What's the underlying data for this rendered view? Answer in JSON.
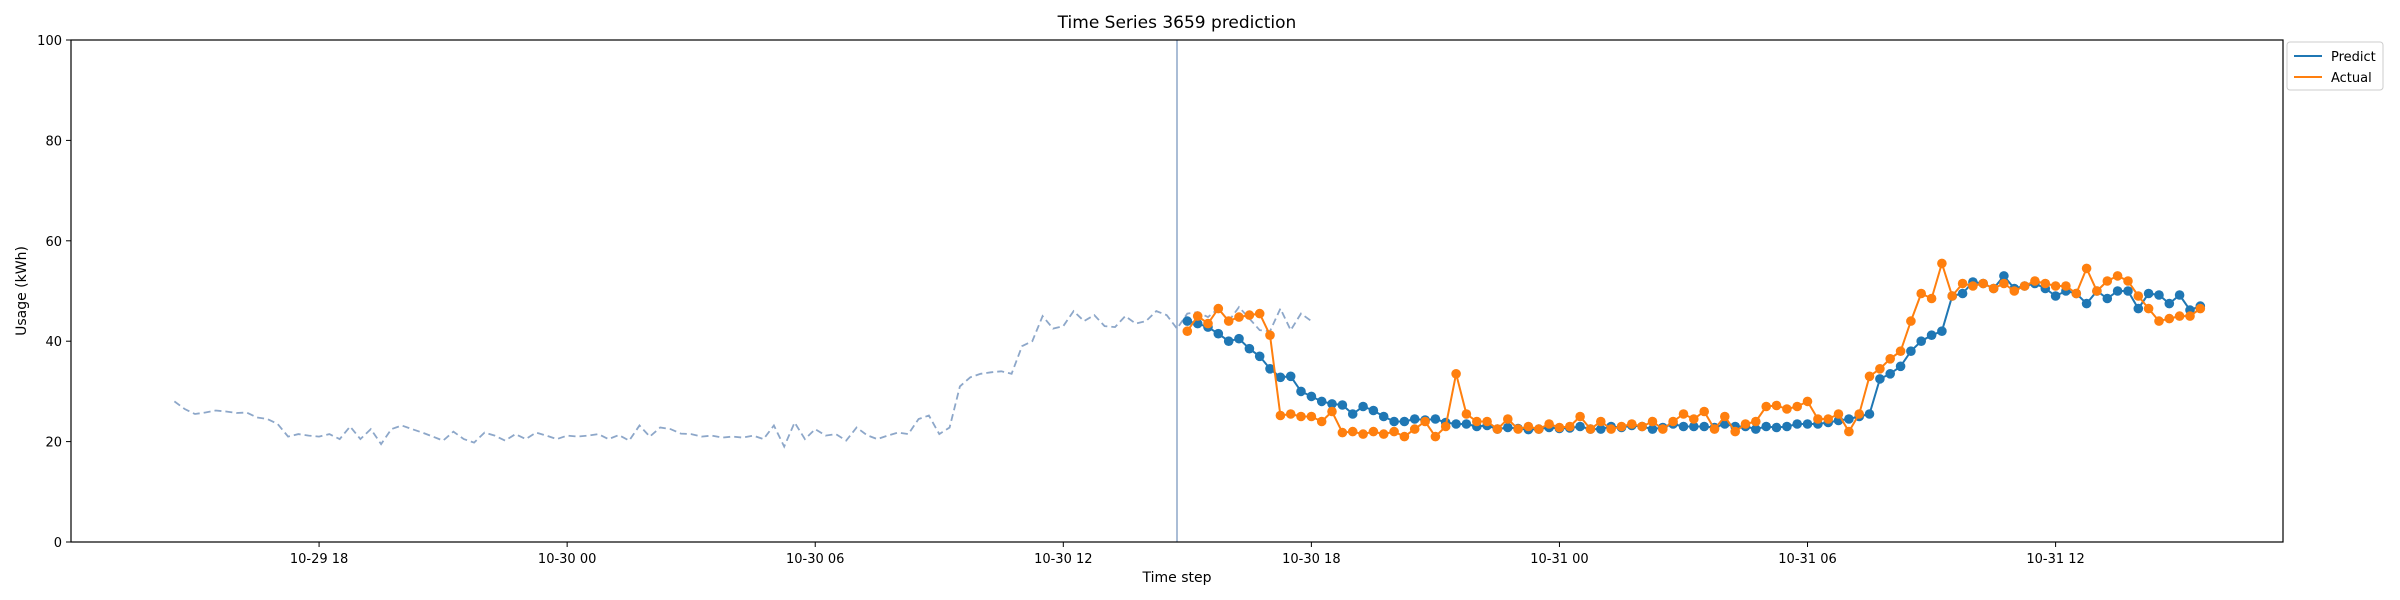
{
  "chart_data": {
    "type": "line",
    "title": "Time Series 3659 prediction",
    "xlabel": "Time step",
    "ylabel": "Usage (kWh)",
    "ylim": [
      0,
      100
    ],
    "yticks": [
      0,
      20,
      40,
      60,
      80,
      100
    ],
    "xlim": [
      "2023-10-29 12:00",
      "2023-10-31 17:30"
    ],
    "xticks": [
      {
        "t": "2023-10-29 18:00",
        "label": "10-29 18"
      },
      {
        "t": "2023-10-30 00:00",
        "label": "10-30 00"
      },
      {
        "t": "2023-10-30 06:00",
        "label": "10-30 06"
      },
      {
        "t": "2023-10-30 12:00",
        "label": "10-30 12"
      },
      {
        "t": "2023-10-30 18:00",
        "label": "10-30 18"
      },
      {
        "t": "2023-10-31 00:00",
        "label": "10-31 00"
      },
      {
        "t": "2023-10-31 06:00",
        "label": "10-31 06"
      },
      {
        "t": "2023-10-31 12:00",
        "label": "10-31 12"
      }
    ],
    "grid": false,
    "legend_position": "top-right (outside)",
    "prediction_start": "2023-10-30 14:45",
    "history": {
      "t0": "2023-10-29 14:30",
      "step_minutes": 15,
      "color": "#8da7c9",
      "style": "dashed",
      "values": [
        28,
        26.5,
        25.5,
        25.8,
        26.2,
        26,
        25.7,
        25.8,
        24.8,
        24.5,
        23.5,
        21,
        21.5,
        21.2,
        21,
        21.5,
        20.5,
        23,
        20.5,
        22.5,
        19.5,
        22.5,
        23.2,
        22.5,
        21.8,
        21,
        20.2,
        22,
        20.5,
        19.8,
        21.8,
        21.2,
        20.2,
        21.5,
        20.5,
        21.8,
        21.2,
        20.5,
        21.2,
        21,
        21.2,
        21.5,
        20.5,
        21.3,
        20.2,
        23.2,
        21,
        22.8,
        22.5,
        21.6,
        21.5,
        21,
        21.2,
        20.8,
        21,
        20.8,
        21.2,
        20.5,
        23.2,
        19,
        23.8,
        20.5,
        22.5,
        21.2,
        21.5,
        20.2,
        22.8,
        21.3,
        20.5,
        21.2,
        21.8,
        21.5,
        24.5,
        25.2,
        21.5,
        22.8,
        31,
        32.8,
        33.5,
        33.8,
        34,
        33.5,
        39,
        40,
        45,
        42.5,
        43,
        46,
        44,
        45.2,
        43,
        42.8,
        45,
        43.5,
        44,
        46,
        45.2,
        42.5,
        45.5,
        45.8,
        44.8,
        46.5,
        44,
        46.8,
        44.5,
        42.2,
        42,
        46.5,
        42.2,
        45.5,
        44
      ]
    },
    "series": [
      {
        "name": "Predict",
        "color": "#1f77b4",
        "t0": "2023-10-30 15:00",
        "step_minutes": 15,
        "values": [
          44,
          43.5,
          42.8,
          41.5,
          40,
          40.5,
          38.5,
          37,
          34.5,
          32.8,
          33,
          30,
          29,
          28,
          27.5,
          27.3,
          25.5,
          27,
          26.2,
          25,
          24,
          24,
          24.5,
          24.3,
          24.5,
          23.8,
          23.5,
          23.5,
          23,
          23.2,
          22.5,
          22.8,
          22.6,
          22.4,
          22.5,
          22.8,
          22.6,
          22.7,
          23,
          22.5,
          22.5,
          23,
          22.8,
          23.2,
          23,
          22.5,
          22.8,
          23.5,
          23,
          23,
          23,
          22.8,
          23.5,
          23,
          23,
          22.5,
          23,
          22.8,
          23,
          23.5,
          23.5,
          23.5,
          23.8,
          24.2,
          24.5,
          25,
          25.5,
          32.5,
          33.5,
          35,
          38,
          40,
          41.2,
          42,
          49,
          49.5,
          51.8,
          51.5,
          50.5,
          53,
          50.5,
          51,
          51.5,
          50.5,
          49,
          50,
          49.5,
          47.5,
          50,
          48.5,
          50,
          50,
          46.5,
          49.5,
          49.2,
          47.5,
          49.2,
          46.2,
          47
        ]
      },
      {
        "name": "Actual",
        "color": "#ff7f0e",
        "t0": "2023-10-30 15:00",
        "step_minutes": 15,
        "values": [
          42,
          45,
          43.5,
          46.5,
          44,
          44.8,
          45.2,
          45.5,
          41.2,
          25.2,
          25.5,
          25,
          25,
          24,
          26,
          21.8,
          22,
          21.5,
          22,
          21.5,
          22,
          21,
          22.5,
          24,
          21,
          23,
          33.5,
          25.5,
          24,
          24,
          22.5,
          24.5,
          22.5,
          23,
          22.5,
          23.5,
          22.8,
          23,
          25,
          22.5,
          24,
          22.5,
          23,
          23.5,
          23,
          24,
          22.5,
          24,
          25.5,
          24.5,
          26,
          22.5,
          25,
          22,
          23.5,
          24,
          27,
          27.2,
          26.5,
          27,
          28,
          24.5,
          24.5,
          25.5,
          22,
          25.5,
          33,
          34.5,
          36.5,
          38,
          44,
          49.5,
          48.5,
          55.5,
          49,
          51.5,
          51,
          51.5,
          50.5,
          51.5,
          50,
          51,
          52,
          51.5,
          51,
          51,
          49.5,
          54.5,
          50,
          52,
          53,
          52,
          49,
          46.5,
          44,
          44.5,
          45,
          45,
          46.5
        ]
      }
    ]
  }
}
